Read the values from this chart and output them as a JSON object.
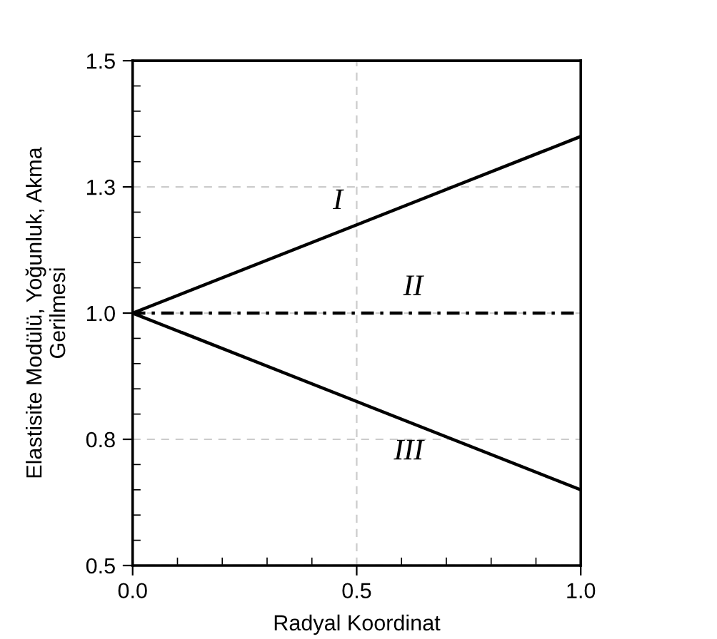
{
  "chart_data": {
    "type": "line",
    "xlabel": "Radyal Koordinat",
    "ylabel": "Elastisite Modülü, Yoğunluk, Akma\nGerilmesi",
    "x": [
      0.0,
      1.0
    ],
    "series": [
      {
        "name": "I",
        "color": "#000000",
        "values": [
          1.0,
          1.35
        ]
      },
      {
        "name": "II",
        "color": "#000000",
        "values": [
          1.0,
          1.0
        ],
        "line_style": "dashed"
      },
      {
        "name": "III",
        "color": "#000000",
        "values": [
          1.0,
          0.65
        ]
      }
    ],
    "xlim": [
      0.0,
      1.0
    ],
    "xticks": [
      {
        "value": 0.0,
        "label": "0.0"
      },
      0.5,
      {
        "value": 1.0,
        "label": "1.0"
      }
    ],
    "ylim": [
      0.5,
      1.5
    ],
    "yticks": [
      0.5,
      {
        "value": 0.75,
        "label": "0.8"
      },
      {
        "value": 1.0,
        "label": "1.0"
      },
      {
        "value": 1.25,
        "label": "1.3"
      },
      1.5
    ],
    "grid": true,
    "line_style": "solid"
  }
}
